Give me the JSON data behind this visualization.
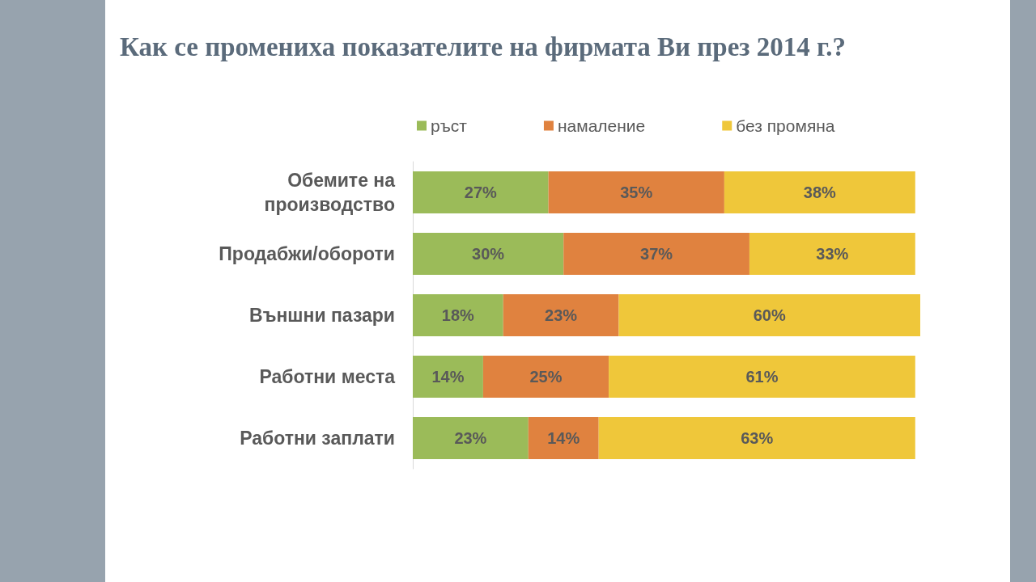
{
  "chart_data": {
    "type": "bar",
    "orientation": "horizontal",
    "stacked": true,
    "title": "Как се промениха показателите на фирмата Ви през 2014 г.?",
    "categories": [
      "Обемите на\nпроизводство",
      "Продабжи/обороти",
      "Външни пазари",
      "Работни места",
      "Работни заплати"
    ],
    "series": [
      {
        "name": "ръст",
        "color": "#9bbb59",
        "values": [
          27,
          30,
          18,
          14,
          23
        ],
        "value_labels": [
          "27%",
          "30%",
          "18%",
          "14%",
          "23%"
        ]
      },
      {
        "name": "намаление",
        "color": "#e0823f",
        "values": [
          35,
          37,
          23,
          25,
          14
        ],
        "value_labels": [
          "35%",
          "37%",
          "23%",
          "25%",
          "14%"
        ]
      },
      {
        "name": "без промяна",
        "color": "#efc73a",
        "values": [
          38,
          33,
          60,
          61,
          63
        ],
        "value_labels": [
          "38%",
          "33%",
          "60%",
          "61%",
          "63%"
        ]
      }
    ],
    "legend": "top"
  }
}
